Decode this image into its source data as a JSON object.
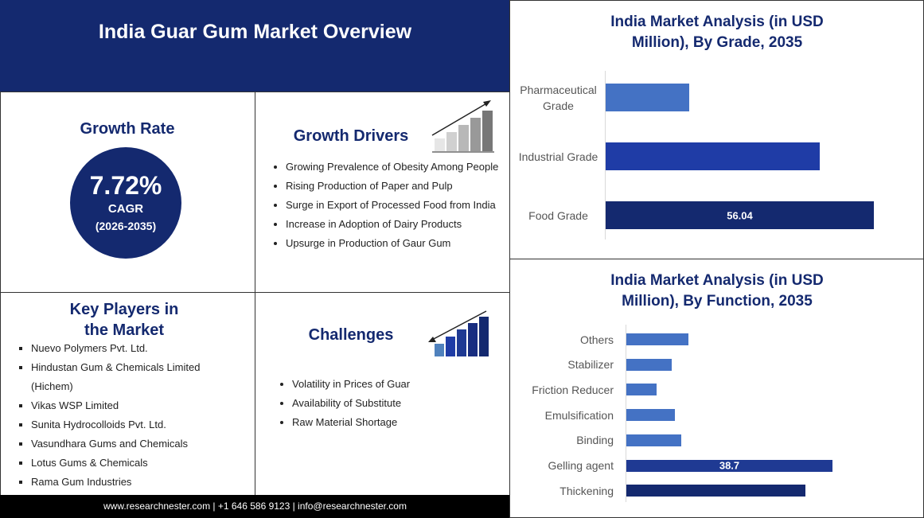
{
  "header": {
    "title": "India Guar Gum Market Overview"
  },
  "growth_rate": {
    "title": "Growth Rate",
    "value": "7.72%",
    "label": "CAGR",
    "period": "(2026-2035)"
  },
  "growth_drivers": {
    "title": "Growth Drivers",
    "items": [
      "Growing Prevalence of Obesity Among People",
      "Rising Production of Paper and Pulp",
      "Surge in Export of Processed Food from India",
      "Increase in Adoption of Dairy Products",
      "Upsurge in Production of Gaur Gum"
    ]
  },
  "key_players": {
    "title": "Key Players in the Market",
    "items": [
      "Nuevo Polymers Pvt. Ltd.",
      "Hindustan Gum & Chemicals Limited (Hichem)",
      "Vikas WSP Limited",
      "Sunita Hydrocolloids Pvt. Ltd.",
      "Vasundhara Gums and Chemicals",
      "Lotus Gums & Chemicals",
      "Rama Gum Industries"
    ]
  },
  "challenges": {
    "title": "Challenges",
    "items": [
      "Volatility in Prices of Guar",
      "Availability of Substitute",
      "Raw Material Shortage"
    ]
  },
  "footer": {
    "contact": "www.researchnester.com | +1 646 586 9123 | info@researchnester.com"
  },
  "chart_data": [
    {
      "type": "bar",
      "title": "India Market Analysis (in USD Million), By Grade, 2035",
      "categories": [
        "Pharmaceutical Grade",
        "Industrial Grade",
        "Food Grade"
      ],
      "values": [
        17.5,
        44.7,
        56.04
      ],
      "value_labels": [
        null,
        null,
        "56.04"
      ],
      "colors": [
        "#4472c4",
        "#1f3ca6",
        "#14296f"
      ]
    },
    {
      "type": "bar",
      "title": "India Market Analysis (in USD Million), By Function, 2035",
      "categories": [
        "Others",
        "Stabilizer",
        "Friction Reducer",
        "Emulsification",
        "Binding",
        "Gelling agent",
        "Thickening"
      ],
      "values": [
        11.7,
        8.5,
        5.7,
        9.1,
        10.3,
        38.7,
        33.6
      ],
      "value_labels": [
        null,
        null,
        null,
        null,
        null,
        "38.7",
        null
      ],
      "colors": [
        "#4472c4",
        "#4472c4",
        "#4472c4",
        "#4472c4",
        "#4472c4",
        "#1f3a93",
        "#14296f"
      ]
    }
  ]
}
